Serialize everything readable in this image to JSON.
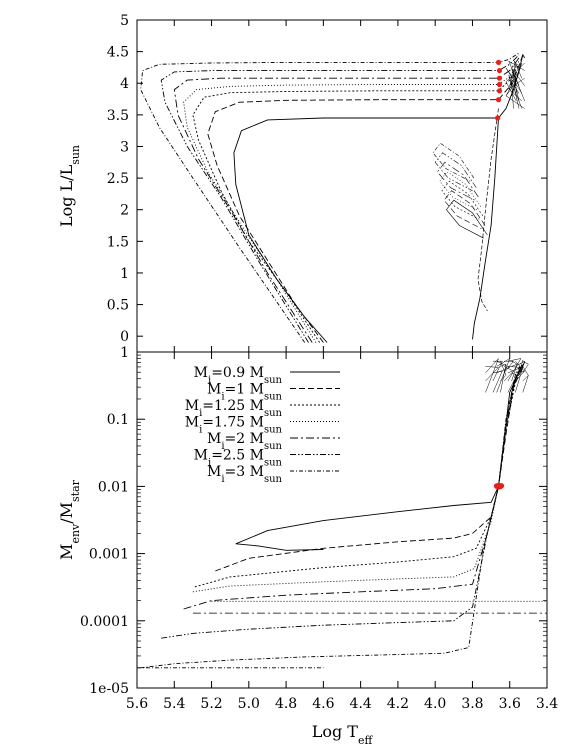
{
  "chart_data": [
    {
      "type": "line",
      "panel": "top",
      "title": "",
      "xlabel": "",
      "ylabel": {
        "main": "Log L/L",
        "sub": "sun"
      },
      "xlim": [
        5.6,
        3.4
      ],
      "ylim": [
        -0.25,
        5
      ],
      "x_reversed": true,
      "yticks": [
        0,
        0.5,
        1,
        1.5,
        2,
        2.5,
        3,
        3.5,
        4,
        4.5,
        5
      ],
      "ytick_labels": [
        "0",
        "0.5",
        "1",
        "1.5",
        "2",
        "2.5",
        "3",
        "3.5",
        "4",
        "4.5",
        "5"
      ],
      "grid": false,
      "series": [
        {
          "style": "solid",
          "points": [
            [
              4.58,
              -0.1
            ],
            [
              4.7,
              0.3
            ],
            [
              4.85,
              0.9
            ],
            [
              5.0,
              1.6
            ],
            [
              5.07,
              2.4
            ],
            [
              5.08,
              2.9
            ],
            [
              5.04,
              3.25
            ],
            [
              4.9,
              3.42
            ],
            [
              4.6,
              3.45
            ],
            [
              4.2,
              3.45
            ],
            [
              3.8,
              3.45
            ],
            [
              3.66,
              3.45
            ],
            [
              3.62,
              3.6
            ],
            [
              3.58,
              3.9
            ],
            [
              3.55,
              4.2
            ],
            [
              3.53,
              4.45
            ],
            [
              3.52,
              4.4
            ]
          ]
        },
        {
          "style": "dash",
          "points": [
            [
              4.6,
              -0.1
            ],
            [
              4.75,
              0.5
            ],
            [
              4.9,
              1.2
            ],
            [
              5.05,
              1.9
            ],
            [
              5.17,
              2.7
            ],
            [
              5.22,
              3.2
            ],
            [
              5.18,
              3.55
            ],
            [
              5.05,
              3.7
            ],
            [
              4.8,
              3.73
            ],
            [
              4.3,
              3.74
            ],
            [
              3.8,
              3.74
            ],
            [
              3.66,
              3.74
            ],
            [
              3.6,
              3.95
            ],
            [
              3.56,
              4.2
            ],
            [
              3.53,
              4.45
            ]
          ]
        },
        {
          "style": "dot",
          "points": [
            [
              4.62,
              -0.1
            ],
            [
              4.8,
              0.7
            ],
            [
              5.0,
              1.5
            ],
            [
              5.15,
              2.3
            ],
            [
              5.27,
              3.1
            ],
            [
              5.3,
              3.5
            ],
            [
              5.24,
              3.78
            ],
            [
              5.1,
              3.85
            ],
            [
              4.8,
              3.87
            ],
            [
              4.3,
              3.88
            ],
            [
              3.8,
              3.88
            ],
            [
              3.66,
              3.88
            ],
            [
              3.6,
              4.05
            ],
            [
              3.55,
              4.3
            ]
          ]
        },
        {
          "style": "dot-fine",
          "points": [
            [
              4.64,
              -0.1
            ],
            [
              4.85,
              0.9
            ],
            [
              5.05,
              1.8
            ],
            [
              5.22,
              2.6
            ],
            [
              5.33,
              3.3
            ],
            [
              5.35,
              3.7
            ],
            [
              5.28,
              3.9
            ],
            [
              5.1,
              3.95
            ],
            [
              4.8,
              3.97
            ],
            [
              4.3,
              3.98
            ],
            [
              3.8,
              3.98
            ],
            [
              3.66,
              3.98
            ],
            [
              3.6,
              4.1
            ],
            [
              3.55,
              4.35
            ]
          ]
        },
        {
          "style": "dash-dot",
          "points": [
            [
              4.66,
              -0.1
            ],
            [
              4.9,
              1.0
            ],
            [
              5.1,
              2.0
            ],
            [
              5.27,
              2.8
            ],
            [
              5.38,
              3.5
            ],
            [
              5.4,
              3.9
            ],
            [
              5.33,
              4.05
            ],
            [
              5.15,
              4.08
            ],
            [
              4.8,
              4.08
            ],
            [
              4.3,
              4.08
            ],
            [
              3.8,
              4.08
            ],
            [
              3.66,
              4.08
            ],
            [
              3.6,
              4.2
            ],
            [
              3.55,
              4.4
            ]
          ]
        },
        {
          "style": "dash-dot-dot",
          "points": [
            [
              4.68,
              -0.1
            ],
            [
              4.95,
              1.2
            ],
            [
              5.15,
              2.2
            ],
            [
              5.33,
              3.0
            ],
            [
              5.45,
              3.7
            ],
            [
              5.47,
              4.05
            ],
            [
              5.4,
              4.18
            ],
            [
              5.2,
              4.2
            ],
            [
              4.8,
              4.2
            ],
            [
              4.3,
              4.2
            ],
            [
              3.8,
              4.2
            ],
            [
              3.66,
              4.2
            ],
            [
              3.6,
              4.3
            ],
            [
              3.55,
              4.45
            ]
          ]
        },
        {
          "style": "dash-dot-dot-2",
          "points": [
            [
              4.7,
              -0.1
            ],
            [
              5.05,
              1.4
            ],
            [
              5.3,
              2.5
            ],
            [
              5.48,
              3.3
            ],
            [
              5.58,
              3.9
            ],
            [
              5.57,
              4.2
            ],
            [
              5.48,
              4.3
            ],
            [
              5.2,
              4.32
            ],
            [
              4.8,
              4.33
            ],
            [
              4.3,
              4.33
            ],
            [
              3.8,
              4.33
            ],
            [
              3.66,
              4.33
            ],
            [
              3.6,
              4.38
            ],
            [
              3.55,
              4.48
            ]
          ]
        }
      ],
      "markers": {
        "color": "#e8201b",
        "points": [
          [
            3.665,
            3.45
          ],
          [
            3.66,
            3.74
          ],
          [
            3.655,
            3.88
          ],
          [
            3.655,
            3.98
          ],
          [
            3.655,
            4.08
          ],
          [
            3.655,
            4.2
          ],
          [
            3.66,
            4.33
          ]
        ]
      },
      "line_color": "#000000"
    },
    {
      "type": "line",
      "panel": "bottom",
      "title": "",
      "xlabel": {
        "main": "Log T",
        "sub": "eff"
      },
      "ylabel": {
        "main": "M",
        "sub1": "env",
        "mid": "/M",
        "sub2": "star"
      },
      "xlim": [
        5.6,
        3.4
      ],
      "ylim": [
        1e-05,
        1
      ],
      "log_y": true,
      "x_reversed": true,
      "xticks": [
        5.6,
        5.4,
        5.2,
        5.0,
        4.8,
        4.6,
        4.4,
        4.2,
        4.0,
        3.8,
        3.6,
        3.4
      ],
      "xtick_labels": [
        "5.6",
        "5.4",
        "5.2",
        "5.0",
        "4.8",
        "4.6",
        "4.4",
        "4.2",
        "4.0",
        "3.8",
        "3.6",
        "3.4"
      ],
      "yticks": [
        1e-05,
        0.0001,
        0.001,
        0.01,
        0.1,
        1
      ],
      "ytick_labels": [
        "1e-05",
        "0.0001",
        "0.001",
        "0.01",
        "0.1",
        "1"
      ],
      "grid": false,
      "legend_position": "top-left",
      "series": [
        {
          "name_main": "M",
          "name_sub": "i",
          "name_value": "=0.9 M",
          "name_unit": "sun",
          "style": "solid",
          "points": [
            [
              4.6,
              0.00115
            ],
            [
              4.8,
              0.00112
            ],
            [
              4.95,
              0.0013
            ],
            [
              5.07,
              0.0014
            ],
            [
              4.9,
              0.0022
            ],
            [
              4.6,
              0.0031
            ],
            [
              4.2,
              0.0042
            ],
            [
              3.9,
              0.0052
            ],
            [
              3.7,
              0.0058
            ],
            [
              3.66,
              0.01
            ],
            [
              3.63,
              0.05
            ],
            [
              3.6,
              0.25
            ],
            [
              3.55,
              0.5
            ],
            [
              3.52,
              0.7
            ]
          ]
        },
        {
          "name_main": "M",
          "name_sub": "i",
          "name_value": "=1 M",
          "name_unit": "sun",
          "style": "dash",
          "points": [
            [
              5.18,
              0.00055
            ],
            [
              5.0,
              0.00085
            ],
            [
              4.6,
              0.0012
            ],
            [
              4.2,
              0.0015
            ],
            [
              3.9,
              0.0017
            ],
            [
              3.8,
              0.002
            ],
            [
              3.7,
              0.0035
            ],
            [
              3.66,
              0.01
            ],
            [
              3.62,
              0.06
            ],
            [
              3.58,
              0.3
            ],
            [
              3.53,
              0.6
            ]
          ]
        },
        {
          "name_main": "M",
          "name_sub": "i",
          "name_value": "=1.25 M",
          "name_unit": "sun",
          "style": "dot",
          "points": [
            [
              5.29,
              0.00032
            ],
            [
              5.1,
              0.00045
            ],
            [
              4.6,
              0.00062
            ],
            [
              4.2,
              0.00075
            ],
            [
              3.9,
              0.0009
            ],
            [
              3.78,
              0.0012
            ],
            [
              3.7,
              0.0035
            ],
            [
              3.66,
              0.01
            ],
            [
              3.62,
              0.07
            ],
            [
              3.57,
              0.35
            ],
            [
              3.53,
              0.6
            ]
          ]
        },
        {
          "name_main": "M",
          "name_sub": "i",
          "name_value": "=1.75 M",
          "name_unit": "sun",
          "style": "dot-fine",
          "points": [
            [
              5.3,
              0.00027
            ],
            [
              5.1,
              0.00033
            ],
            [
              4.6,
              0.00038
            ],
            [
              4.2,
              0.00042
            ],
            [
              3.9,
              0.00045
            ],
            [
              3.79,
              0.0006
            ],
            [
              3.7,
              0.003
            ],
            [
              3.66,
              0.01
            ],
            [
              3.62,
              0.08
            ],
            [
              3.58,
              0.35
            ],
            [
              3.53,
              0.65
            ]
          ]
        },
        {
          "name_main": "M",
          "name_sub": "i",
          "name_value": "=2 M",
          "name_unit": "sun",
          "style": "dash-dot",
          "points": [
            [
              5.35,
              0.00015
            ],
            [
              5.2,
              0.0002
            ],
            [
              4.8,
              0.00024
            ],
            [
              4.4,
              0.00027
            ],
            [
              4.0,
              0.0003
            ],
            [
              3.8,
              0.00035
            ],
            [
              3.72,
              0.002
            ],
            [
              3.66,
              0.01
            ],
            [
              3.62,
              0.08
            ],
            [
              3.58,
              0.35
            ],
            [
              3.53,
              0.65
            ]
          ]
        },
        {
          "name_main": "M",
          "name_sub": "i",
          "name_value": "=2.5 M",
          "name_unit": "sun",
          "style": "dash-dot-dot",
          "points": [
            [
              5.47,
              5.5e-05
            ],
            [
              5.3,
              6.5e-05
            ],
            [
              5.0,
              7.5e-05
            ],
            [
              4.6,
              8.6e-05
            ],
            [
              4.2,
              9.4e-05
            ],
            [
              3.9,
              0.0001
            ],
            [
              3.8,
              0.00016
            ],
            [
              3.72,
              0.002
            ],
            [
              3.66,
              0.01
            ],
            [
              3.62,
              0.08
            ],
            [
              3.57,
              0.4
            ],
            [
              3.53,
              0.7
            ]
          ]
        },
        {
          "name_main": "M",
          "name_sub": "i",
          "name_value": "=3 M",
          "name_unit": "sun",
          "style": "dash-dot-dot-2",
          "points": [
            [
              5.58,
              2e-05
            ],
            [
              5.4,
              2.3e-05
            ],
            [
              5.1,
              2.6e-05
            ],
            [
              4.7,
              2.9e-05
            ],
            [
              4.3,
              3.1e-05
            ],
            [
              3.95,
              3.3e-05
            ],
            [
              3.82,
              4e-05
            ],
            [
              3.74,
              0.0012
            ],
            [
              3.66,
              0.01
            ],
            [
              3.62,
              0.1
            ],
            [
              3.57,
              0.45
            ],
            [
              3.53,
              0.75
            ]
          ]
        }
      ],
      "extra_lines": [
        {
          "style": "dot-fine",
          "points": [
            [
              5.2,
              0.000195
            ],
            [
              3.4,
              0.000195
            ]
          ]
        },
        {
          "style": "dash-dot",
          "points": [
            [
              5.3,
              0.00013
            ],
            [
              3.4,
              0.00013
            ]
          ]
        },
        {
          "style": "dash-dot-dot-2",
          "points": [
            [
              5.6,
              2e-05
            ],
            [
              4.6,
              2e-05
            ]
          ]
        }
      ],
      "markers": {
        "color": "#e8201b",
        "points": [
          [
            3.67,
            0.0101
          ],
          [
            3.66,
            0.0103
          ],
          [
            3.655,
            0.0099
          ],
          [
            3.65,
            0.01
          ],
          [
            3.645,
            0.0102
          ]
        ]
      },
      "line_color": "#000000"
    }
  ]
}
